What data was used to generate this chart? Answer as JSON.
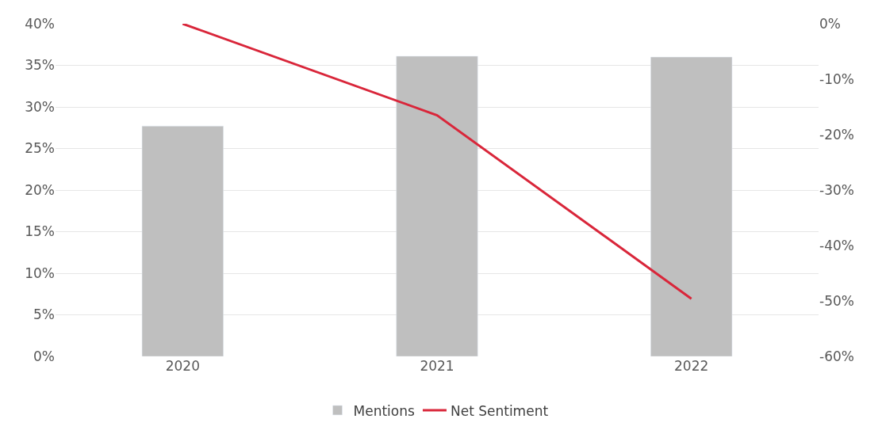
{
  "chart_data": {
    "type": "bar",
    "categories": [
      "2020",
      "2021",
      "2022"
    ],
    "series": [
      {
        "name": "Mentions",
        "color": "#bfbfbf",
        "values": [
          0.277,
          0.361,
          0.36
        ]
      },
      {
        "name": "Net Sentiment",
        "type": "line",
        "axis": "y2",
        "color": "#d9263a",
        "values": [
          0.0,
          -0.165,
          -0.496
        ]
      }
    ],
    "ylim": [
      0,
      0.4
    ],
    "yticks": [
      {
        "value": 0,
        "label": "0%"
      },
      {
        "value": 0.05,
        "label": "5%"
      },
      {
        "value": 0.1,
        "label": "10%"
      },
      {
        "value": 0.15,
        "label": "15%"
      },
      {
        "value": 0.2,
        "label": "20%"
      },
      {
        "value": 0.25,
        "label": "25%"
      },
      {
        "value": 0.3,
        "label": "30%"
      },
      {
        "value": 0.35,
        "label": "35%"
      },
      {
        "value": 0.4,
        "label": "40%"
      }
    ],
    "y2lim": [
      -0.6,
      0
    ],
    "y2ticks": [
      {
        "value": -0.6,
        "label": "-60%"
      },
      {
        "value": -0.5,
        "label": "-50%"
      },
      {
        "value": -0.4,
        "label": "-40%"
      },
      {
        "value": -0.3,
        "label": "-30%"
      },
      {
        "value": -0.2,
        "label": "-20%"
      },
      {
        "value": -0.1,
        "label": "-10%"
      },
      {
        "value": 0,
        "label": "0%"
      }
    ],
    "grid": "y",
    "legend": "bottom",
    "marker": "none",
    "line_style": "solid"
  }
}
